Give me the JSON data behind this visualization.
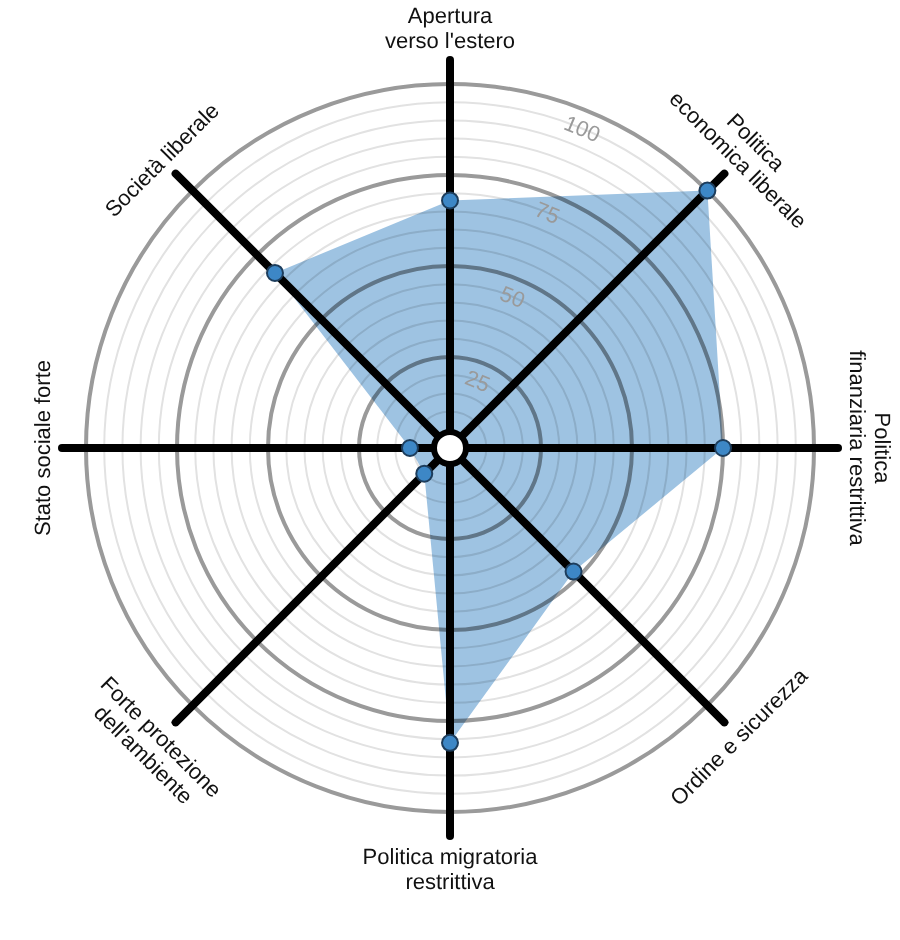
{
  "chart_data": {
    "type": "radar",
    "categories": [
      "Apertura\nverso l'estero",
      "Politica\neconomica liberale",
      "Politica\nfinanziaria restrittiva",
      "Ordine e sicurezza",
      "Politica migratoria\nrestrittiva",
      "Forte protezione\ndell'ambiente",
      "Stato sociale forte",
      "Società liberale"
    ],
    "series": [
      {
        "color": "#3d87c6",
        "values": [
          68,
          100,
          75,
          48,
          81,
          10,
          11,
          68
        ]
      }
    ],
    "ylim": [
      0,
      100
    ],
    "yticks": [
      25,
      50,
      75,
      100
    ],
    "grid": true,
    "marker": "circle"
  }
}
